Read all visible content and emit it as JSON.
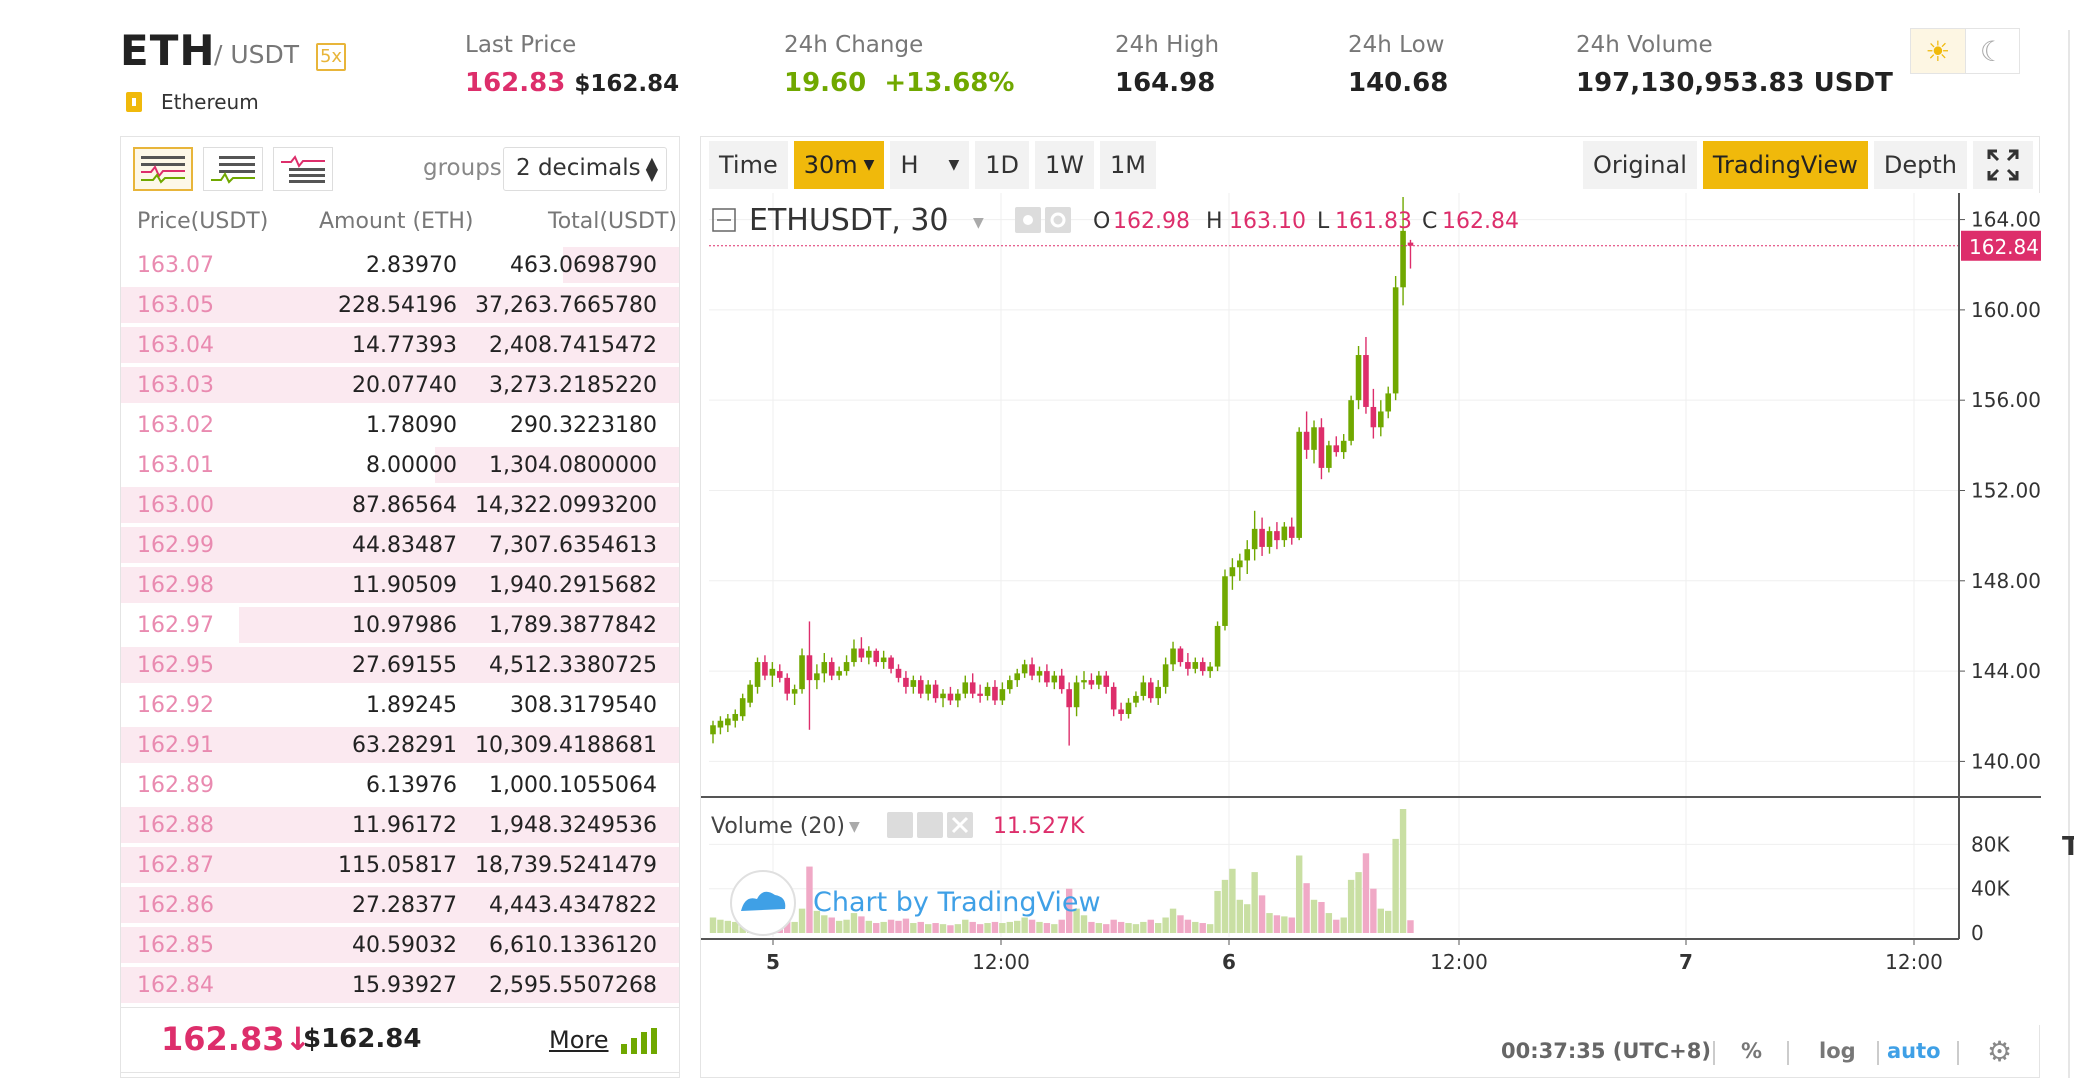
{
  "header": {
    "base": "ETH",
    "quote": "/ USDT",
    "leverage": "5x",
    "coin_name": "Ethereum",
    "coin_icon": "info-icon",
    "stats": [
      {
        "label": "Last Price",
        "value1": "162.83",
        "value2": "$162.84"
      },
      {
        "label": "24h Change",
        "value1": "19.60",
        "value2": "+13.68%"
      },
      {
        "label": "24h High",
        "value": "164.98"
      },
      {
        "label": "24h Low",
        "value": "140.68"
      },
      {
        "label": "24h Volume",
        "value": "197,130,953.83 USDT"
      }
    ],
    "theme_light": "☀",
    "theme_dark": "☾"
  },
  "orderbook": {
    "groups_label": "groups",
    "groups_value": "2 decimals",
    "columns": [
      "Price(USDT)",
      "Amount (ETH)",
      "Total(USDT)"
    ],
    "rows": [
      {
        "price": "163.07",
        "amount": "2.83970",
        "total": "463.0698790",
        "depth": 0.21
      },
      {
        "price": "163.05",
        "amount": "228.54196",
        "total": "37,263.7665780",
        "depth": 1.0
      },
      {
        "price": "163.04",
        "amount": "14.77393",
        "total": "2,408.7415472",
        "depth": 1.0
      },
      {
        "price": "163.03",
        "amount": "20.07740",
        "total": "3,273.2185220",
        "depth": 1.0
      },
      {
        "price": "163.02",
        "amount": "1.78090",
        "total": "290.3223180",
        "depth": 0.0
      },
      {
        "price": "163.01",
        "amount": "8.00000",
        "total": "1,304.0800000",
        "depth": 0.44
      },
      {
        "price": "163.00",
        "amount": "87.86564",
        "total": "14,322.0993200",
        "depth": 1.0
      },
      {
        "price": "162.99",
        "amount": "44.83487",
        "total": "7,307.6354613",
        "depth": 1.0
      },
      {
        "price": "162.98",
        "amount": "11.90509",
        "total": "1,940.2915682",
        "depth": 1.0
      },
      {
        "price": "162.97",
        "amount": "10.97986",
        "total": "1,789.3877842",
        "depth": 0.79
      },
      {
        "price": "162.95",
        "amount": "27.69155",
        "total": "4,512.3380725",
        "depth": 1.0
      },
      {
        "price": "162.92",
        "amount": "1.89245",
        "total": "308.3179540",
        "depth": 0.0
      },
      {
        "price": "162.91",
        "amount": "63.28291",
        "total": "10,309.4188681",
        "depth": 1.0
      },
      {
        "price": "162.89",
        "amount": "6.13976",
        "total": "1,000.1055064",
        "depth": 0.0
      },
      {
        "price": "162.88",
        "amount": "11.96172",
        "total": "1,948.3249536",
        "depth": 1.0
      },
      {
        "price": "162.87",
        "amount": "115.05817",
        "total": "18,739.5241479",
        "depth": 1.0
      },
      {
        "price": "162.86",
        "amount": "27.28377",
        "total": "4,443.4347822",
        "depth": 1.0
      },
      {
        "price": "162.85",
        "amount": "40.59032",
        "total": "6,610.1336120",
        "depth": 1.0
      },
      {
        "price": "162.84",
        "amount": "15.93927",
        "total": "2,595.5507268",
        "depth": 1.0
      }
    ],
    "last_price": "162.83",
    "last_arrow": "↓",
    "last_usd": "$162.84",
    "more_label": "More"
  },
  "chart_toolbar": {
    "left": [
      "Time",
      "30m",
      "H",
      "1D",
      "1W",
      "1M"
    ],
    "right": [
      "Original",
      "TradingView",
      "Depth"
    ],
    "active_interval": "30m",
    "active_view": "TradingView"
  },
  "chart_legend": {
    "symbol": "ETHUSDT, 30",
    "o_label": "O",
    "o": "162.98",
    "h_label": "H",
    "h": "163.10",
    "l_label": "L",
    "l": "161.83",
    "c_label": "C",
    "c": "162.84",
    "volume_label": "Volume (20)",
    "volume_value": "11.527K",
    "watermark": "Chart by TradingView"
  },
  "chart_footer": {
    "time": "00:37:35 (UTC+8)",
    "percent": "%",
    "log": "log",
    "auto": "auto"
  },
  "colors": {
    "up": "#70a800",
    "down": "#dd2e6b",
    "accent": "#f0b90b",
    "link": "#3fa0e6"
  },
  "chart_data": {
    "type": "candlestick",
    "interval": "30m",
    "y_ticks": [
      "164.00",
      "160.00",
      "156.00",
      "152.00",
      "148.00",
      "144.00",
      "140.00"
    ],
    "ylim": [
      138.6,
      165.0
    ],
    "last_price_label": "162.84",
    "x_ticks": [
      "5",
      "12:00",
      "6",
      "12:00",
      "7",
      "12:00"
    ],
    "volume_ticks": [
      "80K",
      "40K",
      "0"
    ],
    "volume_max": 112000,
    "candles": [
      {
        "o": 141.2,
        "h": 141.8,
        "l": 140.8,
        "c": 141.6,
        "v": 14000
      },
      {
        "o": 141.5,
        "h": 142.0,
        "l": 141.2,
        "c": 141.8,
        "v": 12000
      },
      {
        "o": 141.6,
        "h": 142.1,
        "l": 141.3,
        "c": 141.9,
        "v": 11000
      },
      {
        "o": 141.8,
        "h": 142.3,
        "l": 141.5,
        "c": 142.1,
        "v": 10000
      },
      {
        "o": 142.0,
        "h": 143.0,
        "l": 141.8,
        "c": 142.8,
        "v": 15000
      },
      {
        "o": 142.6,
        "h": 143.6,
        "l": 142.4,
        "c": 143.4,
        "v": 18000
      },
      {
        "o": 143.3,
        "h": 144.6,
        "l": 143.0,
        "c": 144.4,
        "v": 22000
      },
      {
        "o": 144.4,
        "h": 144.7,
        "l": 143.6,
        "c": 143.8,
        "v": 16000
      },
      {
        "o": 143.8,
        "h": 144.4,
        "l": 143.3,
        "c": 144.1,
        "v": 13000
      },
      {
        "o": 144.0,
        "h": 144.3,
        "l": 143.5,
        "c": 143.7,
        "v": 12000
      },
      {
        "o": 143.7,
        "h": 143.9,
        "l": 142.7,
        "c": 143.0,
        "v": 14000
      },
      {
        "o": 143.0,
        "h": 143.4,
        "l": 142.5,
        "c": 143.2,
        "v": 10000
      },
      {
        "o": 143.2,
        "h": 145.0,
        "l": 143.0,
        "c": 144.7,
        "v": 22000
      },
      {
        "o": 144.7,
        "h": 146.2,
        "l": 141.4,
        "c": 143.6,
        "v": 60000
      },
      {
        "o": 143.6,
        "h": 144.3,
        "l": 143.2,
        "c": 143.9,
        "v": 20000
      },
      {
        "o": 143.9,
        "h": 144.8,
        "l": 143.5,
        "c": 144.4,
        "v": 16000
      },
      {
        "o": 144.4,
        "h": 144.6,
        "l": 143.6,
        "c": 143.8,
        "v": 14000
      },
      {
        "o": 143.8,
        "h": 144.2,
        "l": 143.6,
        "c": 144.0,
        "v": 11000
      },
      {
        "o": 144.0,
        "h": 144.7,
        "l": 143.8,
        "c": 144.4,
        "v": 12000
      },
      {
        "o": 144.4,
        "h": 145.4,
        "l": 144.2,
        "c": 145.0,
        "v": 18000
      },
      {
        "o": 145.0,
        "h": 145.5,
        "l": 144.4,
        "c": 144.6,
        "v": 15000
      },
      {
        "o": 144.6,
        "h": 145.1,
        "l": 144.3,
        "c": 144.9,
        "v": 11000
      },
      {
        "o": 144.9,
        "h": 145.0,
        "l": 144.2,
        "c": 144.4,
        "v": 9000
      },
      {
        "o": 144.4,
        "h": 144.9,
        "l": 144.1,
        "c": 144.6,
        "v": 10000
      },
      {
        "o": 144.6,
        "h": 144.7,
        "l": 143.9,
        "c": 144.1,
        "v": 12000
      },
      {
        "o": 144.1,
        "h": 144.3,
        "l": 143.5,
        "c": 143.7,
        "v": 11000
      },
      {
        "o": 143.7,
        "h": 144.0,
        "l": 143.0,
        "c": 143.3,
        "v": 13000
      },
      {
        "o": 143.3,
        "h": 143.8,
        "l": 143.0,
        "c": 143.6,
        "v": 9000
      },
      {
        "o": 143.6,
        "h": 143.8,
        "l": 142.8,
        "c": 143.0,
        "v": 10000
      },
      {
        "o": 143.0,
        "h": 143.6,
        "l": 142.7,
        "c": 143.4,
        "v": 8000
      },
      {
        "o": 143.4,
        "h": 143.6,
        "l": 142.6,
        "c": 142.8,
        "v": 9000
      },
      {
        "o": 142.8,
        "h": 143.2,
        "l": 142.4,
        "c": 143.0,
        "v": 8000
      },
      {
        "o": 143.0,
        "h": 143.3,
        "l": 142.5,
        "c": 142.7,
        "v": 7000
      },
      {
        "o": 142.7,
        "h": 143.2,
        "l": 142.4,
        "c": 143.0,
        "v": 8000
      },
      {
        "o": 143.0,
        "h": 143.8,
        "l": 142.8,
        "c": 143.5,
        "v": 12000
      },
      {
        "o": 143.5,
        "h": 143.9,
        "l": 142.8,
        "c": 143.0,
        "v": 10000
      },
      {
        "o": 143.0,
        "h": 143.4,
        "l": 142.6,
        "c": 142.9,
        "v": 8000
      },
      {
        "o": 142.9,
        "h": 143.5,
        "l": 142.7,
        "c": 143.3,
        "v": 9000
      },
      {
        "o": 143.3,
        "h": 143.6,
        "l": 142.5,
        "c": 142.7,
        "v": 10000
      },
      {
        "o": 142.7,
        "h": 143.5,
        "l": 142.5,
        "c": 143.2,
        "v": 9000
      },
      {
        "o": 143.2,
        "h": 143.8,
        "l": 143.0,
        "c": 143.6,
        "v": 10000
      },
      {
        "o": 143.6,
        "h": 144.1,
        "l": 143.3,
        "c": 143.9,
        "v": 11000
      },
      {
        "o": 143.9,
        "h": 144.5,
        "l": 143.7,
        "c": 144.3,
        "v": 14000
      },
      {
        "o": 144.3,
        "h": 144.6,
        "l": 143.6,
        "c": 143.8,
        "v": 12000
      },
      {
        "o": 143.8,
        "h": 144.2,
        "l": 143.5,
        "c": 144.0,
        "v": 10000
      },
      {
        "o": 144.0,
        "h": 144.3,
        "l": 143.3,
        "c": 143.5,
        "v": 9000
      },
      {
        "o": 143.5,
        "h": 144.0,
        "l": 143.2,
        "c": 143.8,
        "v": 8000
      },
      {
        "o": 143.8,
        "h": 144.1,
        "l": 143.0,
        "c": 143.2,
        "v": 12000
      },
      {
        "o": 143.2,
        "h": 143.5,
        "l": 140.7,
        "c": 142.4,
        "v": 40000
      },
      {
        "o": 142.4,
        "h": 143.8,
        "l": 142.0,
        "c": 143.5,
        "v": 22000
      },
      {
        "o": 143.5,
        "h": 144.0,
        "l": 143.2,
        "c": 143.6,
        "v": 16000
      },
      {
        "o": 143.6,
        "h": 143.9,
        "l": 143.2,
        "c": 143.4,
        "v": 10000
      },
      {
        "o": 143.4,
        "h": 144.0,
        "l": 143.2,
        "c": 143.8,
        "v": 9000
      },
      {
        "o": 143.8,
        "h": 144.0,
        "l": 143.0,
        "c": 143.3,
        "v": 8000
      },
      {
        "o": 143.3,
        "h": 143.5,
        "l": 142.0,
        "c": 142.3,
        "v": 12000
      },
      {
        "o": 142.3,
        "h": 142.6,
        "l": 141.8,
        "c": 142.1,
        "v": 10000
      },
      {
        "o": 142.1,
        "h": 142.8,
        "l": 141.9,
        "c": 142.6,
        "v": 9000
      },
      {
        "o": 142.6,
        "h": 143.1,
        "l": 142.4,
        "c": 142.9,
        "v": 8000
      },
      {
        "o": 142.9,
        "h": 143.8,
        "l": 142.7,
        "c": 143.5,
        "v": 10000
      },
      {
        "o": 143.5,
        "h": 143.7,
        "l": 142.6,
        "c": 142.8,
        "v": 12000
      },
      {
        "o": 142.8,
        "h": 143.6,
        "l": 142.5,
        "c": 143.3,
        "v": 9000
      },
      {
        "o": 143.3,
        "h": 144.6,
        "l": 143.0,
        "c": 144.3,
        "v": 14000
      },
      {
        "o": 144.3,
        "h": 145.3,
        "l": 144.0,
        "c": 145.0,
        "v": 22000
      },
      {
        "o": 145.0,
        "h": 145.1,
        "l": 144.2,
        "c": 144.4,
        "v": 16000
      },
      {
        "o": 144.4,
        "h": 144.8,
        "l": 143.8,
        "c": 144.1,
        "v": 12000
      },
      {
        "o": 144.1,
        "h": 144.6,
        "l": 143.9,
        "c": 144.4,
        "v": 10000
      },
      {
        "o": 144.4,
        "h": 144.6,
        "l": 143.8,
        "c": 144.0,
        "v": 9000
      },
      {
        "o": 144.0,
        "h": 144.4,
        "l": 143.7,
        "c": 144.2,
        "v": 8000
      },
      {
        "o": 144.2,
        "h": 146.2,
        "l": 144.0,
        "c": 146.0,
        "v": 38000
      },
      {
        "o": 146.0,
        "h": 148.5,
        "l": 145.8,
        "c": 148.2,
        "v": 48000
      },
      {
        "o": 148.2,
        "h": 149.0,
        "l": 147.6,
        "c": 148.6,
        "v": 58000
      },
      {
        "o": 148.6,
        "h": 149.2,
        "l": 148.0,
        "c": 148.9,
        "v": 30000
      },
      {
        "o": 148.9,
        "h": 149.8,
        "l": 148.3,
        "c": 149.4,
        "v": 26000
      },
      {
        "o": 149.4,
        "h": 151.1,
        "l": 148.9,
        "c": 150.3,
        "v": 55000
      },
      {
        "o": 150.3,
        "h": 150.8,
        "l": 149.1,
        "c": 149.5,
        "v": 34000
      },
      {
        "o": 149.5,
        "h": 150.4,
        "l": 149.2,
        "c": 150.2,
        "v": 18000
      },
      {
        "o": 150.2,
        "h": 150.6,
        "l": 149.4,
        "c": 149.8,
        "v": 16000
      },
      {
        "o": 149.8,
        "h": 150.6,
        "l": 149.5,
        "c": 150.4,
        "v": 15000
      },
      {
        "o": 150.4,
        "h": 150.8,
        "l": 149.6,
        "c": 149.9,
        "v": 14000
      },
      {
        "o": 149.9,
        "h": 154.8,
        "l": 149.8,
        "c": 154.6,
        "v": 70000
      },
      {
        "o": 154.6,
        "h": 155.5,
        "l": 153.4,
        "c": 153.8,
        "v": 45000
      },
      {
        "o": 153.8,
        "h": 155.1,
        "l": 153.2,
        "c": 154.8,
        "v": 30000
      },
      {
        "o": 154.8,
        "h": 155.2,
        "l": 152.5,
        "c": 153.0,
        "v": 28000
      },
      {
        "o": 153.0,
        "h": 154.2,
        "l": 152.8,
        "c": 154.0,
        "v": 18000
      },
      {
        "o": 154.0,
        "h": 154.4,
        "l": 153.5,
        "c": 153.7,
        "v": 12000
      },
      {
        "o": 153.7,
        "h": 154.5,
        "l": 153.4,
        "c": 154.2,
        "v": 14000
      },
      {
        "o": 154.2,
        "h": 156.2,
        "l": 154.0,
        "c": 156.0,
        "v": 48000
      },
      {
        "o": 156.0,
        "h": 158.4,
        "l": 155.6,
        "c": 158.0,
        "v": 55000
      },
      {
        "o": 158.0,
        "h": 158.8,
        "l": 155.4,
        "c": 155.7,
        "v": 72000
      },
      {
        "o": 155.7,
        "h": 156.5,
        "l": 154.3,
        "c": 154.8,
        "v": 40000
      },
      {
        "o": 154.8,
        "h": 156.0,
        "l": 154.4,
        "c": 155.5,
        "v": 22000
      },
      {
        "o": 155.5,
        "h": 156.6,
        "l": 155.2,
        "c": 156.3,
        "v": 20000
      },
      {
        "o": 156.3,
        "h": 161.5,
        "l": 156.0,
        "c": 161.0,
        "v": 85000
      },
      {
        "o": 161.0,
        "h": 165.0,
        "l": 160.2,
        "c": 163.5,
        "v": 112000
      },
      {
        "o": 162.98,
        "h": 163.1,
        "l": 161.83,
        "c": 162.84,
        "v": 11527
      }
    ]
  }
}
